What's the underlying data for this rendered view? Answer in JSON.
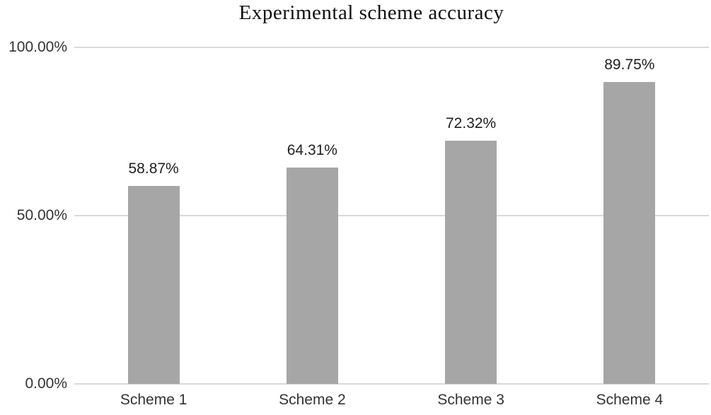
{
  "chart_data": {
    "type": "bar",
    "title": "Experimental scheme accuracy",
    "categories": [
      "Scheme 1",
      "Scheme 2",
      "Scheme 3",
      "Scheme 4"
    ],
    "values": [
      58.87,
      64.31,
      72.32,
      89.75
    ],
    "data_labels": [
      "58.87%",
      "64.31%",
      "72.32%",
      "89.75%"
    ],
    "yticks": [
      {
        "value": 0,
        "label": "0.00%"
      },
      {
        "value": 50,
        "label": "50.00%"
      },
      {
        "value": 100,
        "label": "100.00%"
      }
    ],
    "ylim": [
      0,
      100
    ],
    "xlabel": "",
    "ylabel": "",
    "grid": "horizontal",
    "legend": "none",
    "colors": {
      "bar_fill": "#a6a6a6",
      "gridline": "#d9d9d9",
      "tick_text": "#333333",
      "data_label_text": "#1f1f1f",
      "title_text": "#111111"
    }
  }
}
